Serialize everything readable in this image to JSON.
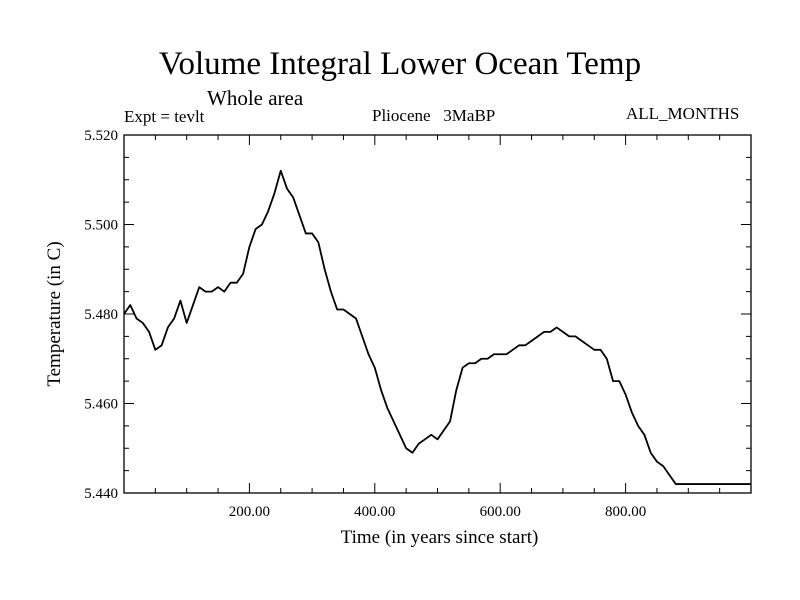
{
  "header": {
    "title": "Volume Integral Lower Ocean Temp",
    "subtitle": "Whole area",
    "expt_label": "Expt = tevlt",
    "period_label": "Pliocene   3MaBP",
    "months_label": "ALL_MONTHS"
  },
  "chart_data": {
    "type": "line",
    "title": "Volume Integral Lower Ocean Temp",
    "xlabel": "Time (in years since start)",
    "ylabel": "Temperature (in C)",
    "xlim": [
      0,
      1000
    ],
    "ylim": [
      5.44,
      5.52
    ],
    "xticks": [
      200,
      400,
      600,
      800
    ],
    "xtick_labels": [
      "200.00",
      "400.00",
      "600.00",
      "800.00"
    ],
    "yticks": [
      5.44,
      5.46,
      5.48,
      5.5,
      5.52
    ],
    "ytick_labels": [
      "5.440",
      "5.460",
      "5.480",
      "5.500",
      "5.520"
    ],
    "grid": false,
    "series": [
      {
        "name": "Volume Integral Lower Ocean Temp",
        "x": [
          0,
          10,
          20,
          30,
          40,
          50,
          60,
          70,
          80,
          90,
          100,
          110,
          120,
          130,
          140,
          150,
          160,
          170,
          180,
          190,
          200,
          210,
          220,
          230,
          240,
          250,
          260,
          270,
          280,
          290,
          300,
          310,
          320,
          330,
          340,
          350,
          360,
          370,
          380,
          390,
          400,
          410,
          420,
          430,
          440,
          450,
          460,
          470,
          480,
          490,
          500,
          510,
          520,
          530,
          540,
          550,
          560,
          570,
          580,
          590,
          600,
          610,
          620,
          630,
          640,
          650,
          660,
          670,
          680,
          690,
          700,
          710,
          720,
          730,
          740,
          750,
          760,
          770,
          780,
          790,
          800,
          810,
          820,
          830,
          840,
          850,
          860,
          870,
          880,
          890,
          900,
          910,
          920,
          930,
          940,
          950,
          960,
          970,
          980,
          990,
          1000
        ],
        "values": [
          5.48,
          5.482,
          5.479,
          5.478,
          5.476,
          5.472,
          5.473,
          5.477,
          5.479,
          5.483,
          5.478,
          5.482,
          5.486,
          5.485,
          5.485,
          5.486,
          5.485,
          5.487,
          5.487,
          5.489,
          5.495,
          5.499,
          5.5,
          5.503,
          5.507,
          5.512,
          5.508,
          5.506,
          5.502,
          5.498,
          5.498,
          5.496,
          5.49,
          5.485,
          5.481,
          5.481,
          5.48,
          5.479,
          5.475,
          5.471,
          5.468,
          5.463,
          5.459,
          5.456,
          5.453,
          5.45,
          5.449,
          5.451,
          5.452,
          5.453,
          5.452,
          5.454,
          5.456,
          5.463,
          5.468,
          5.469,
          5.469,
          5.47,
          5.47,
          5.471,
          5.471,
          5.471,
          5.472,
          5.473,
          5.473,
          5.474,
          5.475,
          5.476,
          5.476,
          5.477,
          5.476,
          5.475,
          5.475,
          5.474,
          5.473,
          5.472,
          5.472,
          5.47,
          5.465,
          5.465,
          5.462,
          5.458,
          5.455,
          5.453,
          5.449,
          5.447,
          5.446,
          5.444,
          5.442,
          5.442,
          5.442,
          5.442,
          5.442,
          5.442,
          5.442,
          5.442,
          5.442,
          5.442,
          5.442,
          5.442,
          5.442
        ]
      }
    ]
  }
}
